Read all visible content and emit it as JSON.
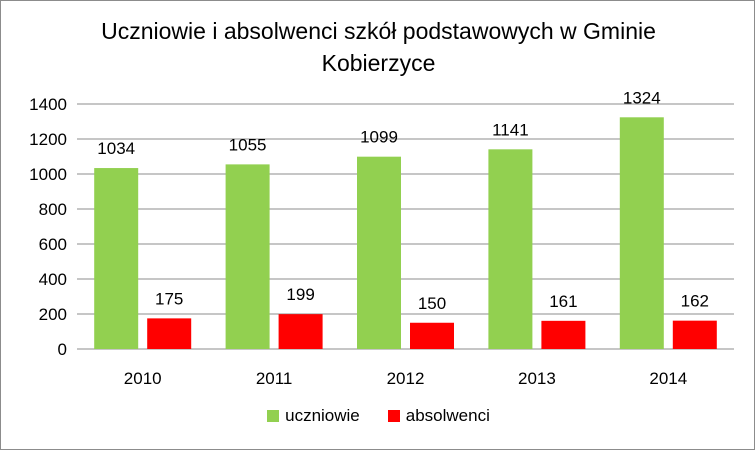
{
  "chart_data": {
    "type": "bar",
    "title_lines": [
      "Uczniowie i absolwenci szkół podstawowych w Gminie",
      "Kobierzyce"
    ],
    "categories": [
      "2010",
      "2011",
      "2012",
      "2013",
      "2014"
    ],
    "series": [
      {
        "name": "uczniowie",
        "values": [
          1034,
          1055,
          1099,
          1141,
          1324
        ],
        "color": "#92d050"
      },
      {
        "name": "absolwenci",
        "values": [
          175,
          199,
          150,
          161,
          162
        ],
        "color": "#ff0000"
      }
    ],
    "y_ticks": [
      "0",
      "200",
      "400",
      "600",
      "800",
      "1000",
      "1200",
      "1400"
    ],
    "ylim": [
      0,
      1400
    ],
    "grid": true,
    "legend_position": "bottom"
  }
}
